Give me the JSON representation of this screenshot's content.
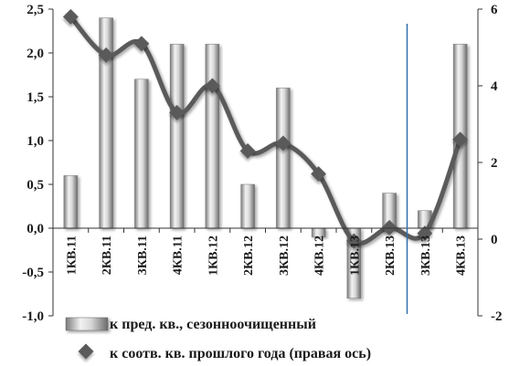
{
  "chart_data": {
    "type": "bar+line",
    "categories": [
      "1КВ.11",
      "2КВ.11",
      "3КВ.11",
      "4КВ.11",
      "1КВ.12",
      "2КВ.12",
      "3КВ.12",
      "4КВ.12",
      "1КВ.13",
      "2КВ.13",
      "3КВ.13",
      "4КВ.13"
    ],
    "left_axis": {
      "min": -1.0,
      "max": 2.5,
      "ticks": [
        "-1,0",
        "-0,5",
        "0,0",
        "0,5",
        "1,0",
        "1,5",
        "2,0",
        "2,5"
      ]
    },
    "right_axis": {
      "min": -2,
      "max": 6,
      "ticks": [
        "-2",
        "0",
        "2",
        "4",
        "6"
      ]
    },
    "series": [
      {
        "name": "к пред. кв., сезонноочищенный",
        "type": "bar",
        "axis": "left",
        "values": [
          0.6,
          2.4,
          1.7,
          2.1,
          2.1,
          0.5,
          1.6,
          -0.1,
          -0.8,
          0.4,
          0.2,
          2.1
        ]
      },
      {
        "name": "к соотв. кв. прошлого года (правая ось)",
        "type": "line",
        "axis": "right",
        "values": [
          5.8,
          4.8,
          5.1,
          3.3,
          4.0,
          2.3,
          2.5,
          1.7,
          -0.05,
          0.3,
          0.15,
          2.6
        ]
      }
    ],
    "annotations": [
      {
        "type": "vertical-line",
        "between": [
          "2КВ.13",
          "3КВ.13"
        ],
        "color": "#2f6fb0"
      }
    ],
    "legend_position": "bottom"
  },
  "colors": {
    "line": "#5a5a5a",
    "bar_light": "#e8e8e8",
    "bar_dark": "#6e6e6e",
    "divider": "#2f6fb0",
    "axis": "#333333"
  }
}
